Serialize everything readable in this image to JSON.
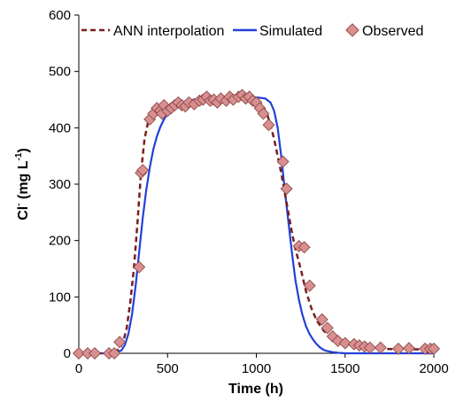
{
  "chart_data": {
    "type": "line",
    "xlabel": "Time (h)",
    "ylabel": {
      "main": "Cl",
      "sup1": "-",
      "rest": " (mg L",
      "sup2": "-1",
      "close": ")"
    },
    "xlim": [
      0,
      2000
    ],
    "ylim": [
      0,
      600
    ],
    "xticks": [
      0,
      500,
      1000,
      1500,
      2000
    ],
    "yticks": [
      0,
      100,
      200,
      300,
      400,
      500,
      600
    ],
    "grid": false,
    "legend": "top",
    "colors": {
      "ann": "#7b1d1d",
      "simulated": "#2340d8",
      "observed_fill": "#d98f8f",
      "observed_edge": "#8e4a4a"
    },
    "series": [
      {
        "name": "ANN interpolation",
        "style": "dashed",
        "x": [
          0,
          150,
          200,
          230,
          250,
          270,
          290,
          310,
          330,
          350,
          370,
          390,
          410,
          430,
          450,
          480,
          520,
          600,
          700,
          800,
          900,
          950,
          1000,
          1030,
          1060,
          1080,
          1100,
          1120,
          1140,
          1160,
          1180,
          1200,
          1220,
          1250,
          1280,
          1310,
          1340,
          1380,
          1420,
          1460,
          1500,
          1550,
          1600,
          1700,
          1800,
          1900,
          2000
        ],
        "y": [
          0,
          0,
          2,
          8,
          20,
          45,
          90,
          150,
          230,
          320,
          380,
          410,
          422,
          428,
          433,
          437,
          440,
          445,
          448,
          450,
          453,
          455,
          452,
          440,
          425,
          405,
          380,
          350,
          320,
          285,
          250,
          215,
          185,
          150,
          110,
          80,
          58,
          40,
          28,
          20,
          15,
          12,
          10,
          8,
          7,
          7,
          7
        ]
      },
      {
        "name": "Simulated",
        "style": "solid",
        "x": [
          0,
          200,
          240,
          260,
          280,
          300,
          320,
          340,
          360,
          380,
          400,
          420,
          440,
          460,
          480,
          500,
          530,
          560,
          600,
          650,
          700,
          800,
          900,
          1000,
          1050,
          1080,
          1100,
          1120,
          1140,
          1160,
          1180,
          1200,
          1220,
          1240,
          1260,
          1280,
          1300,
          1320,
          1340,
          1360,
          1380,
          1400,
          1430,
          1460,
          1500,
          1550,
          1600,
          1700,
          1800,
          1900,
          2000
        ],
        "y": [
          0,
          0,
          5,
          15,
          35,
          70,
          120,
          180,
          240,
          290,
          330,
          362,
          385,
          402,
          415,
          425,
          435,
          442,
          447,
          450,
          452,
          454,
          454,
          454,
          452,
          445,
          430,
          400,
          350,
          290,
          235,
          180,
          130,
          95,
          68,
          48,
          34,
          24,
          16,
          10,
          6,
          4,
          2,
          1,
          0,
          0,
          0,
          0,
          0,
          0,
          0
        ]
      },
      {
        "name": "Observed",
        "style": "marker",
        "x": [
          0,
          50,
          90,
          170,
          200,
          230,
          340,
          350,
          360,
          400,
          420,
          440,
          460,
          470,
          480,
          500,
          520,
          540,
          560,
          580,
          600,
          620,
          650,
          680,
          700,
          720,
          740,
          760,
          780,
          800,
          830,
          850,
          870,
          900,
          920,
          940,
          960,
          980,
          1000,
          1020,
          1040,
          1070,
          1150,
          1170,
          1240,
          1270,
          1300,
          1370,
          1400,
          1430,
          1460,
          1500,
          1550,
          1580,
          1610,
          1640,
          1700,
          1800,
          1860,
          1950,
          1980,
          2000
        ],
        "y": [
          0,
          0,
          0,
          0,
          0,
          20,
          153,
          320,
          325,
          415,
          425,
          435,
          430,
          425,
          440,
          430,
          435,
          440,
          445,
          440,
          438,
          445,
          442,
          448,
          450,
          455,
          448,
          450,
          445,
          452,
          448,
          455,
          450,
          455,
          458,
          452,
          455,
          448,
          445,
          435,
          425,
          405,
          340,
          292,
          190,
          188,
          120,
          60,
          45,
          30,
          22,
          18,
          16,
          14,
          12,
          10,
          10,
          8,
          9,
          8,
          8,
          8
        ]
      }
    ]
  }
}
